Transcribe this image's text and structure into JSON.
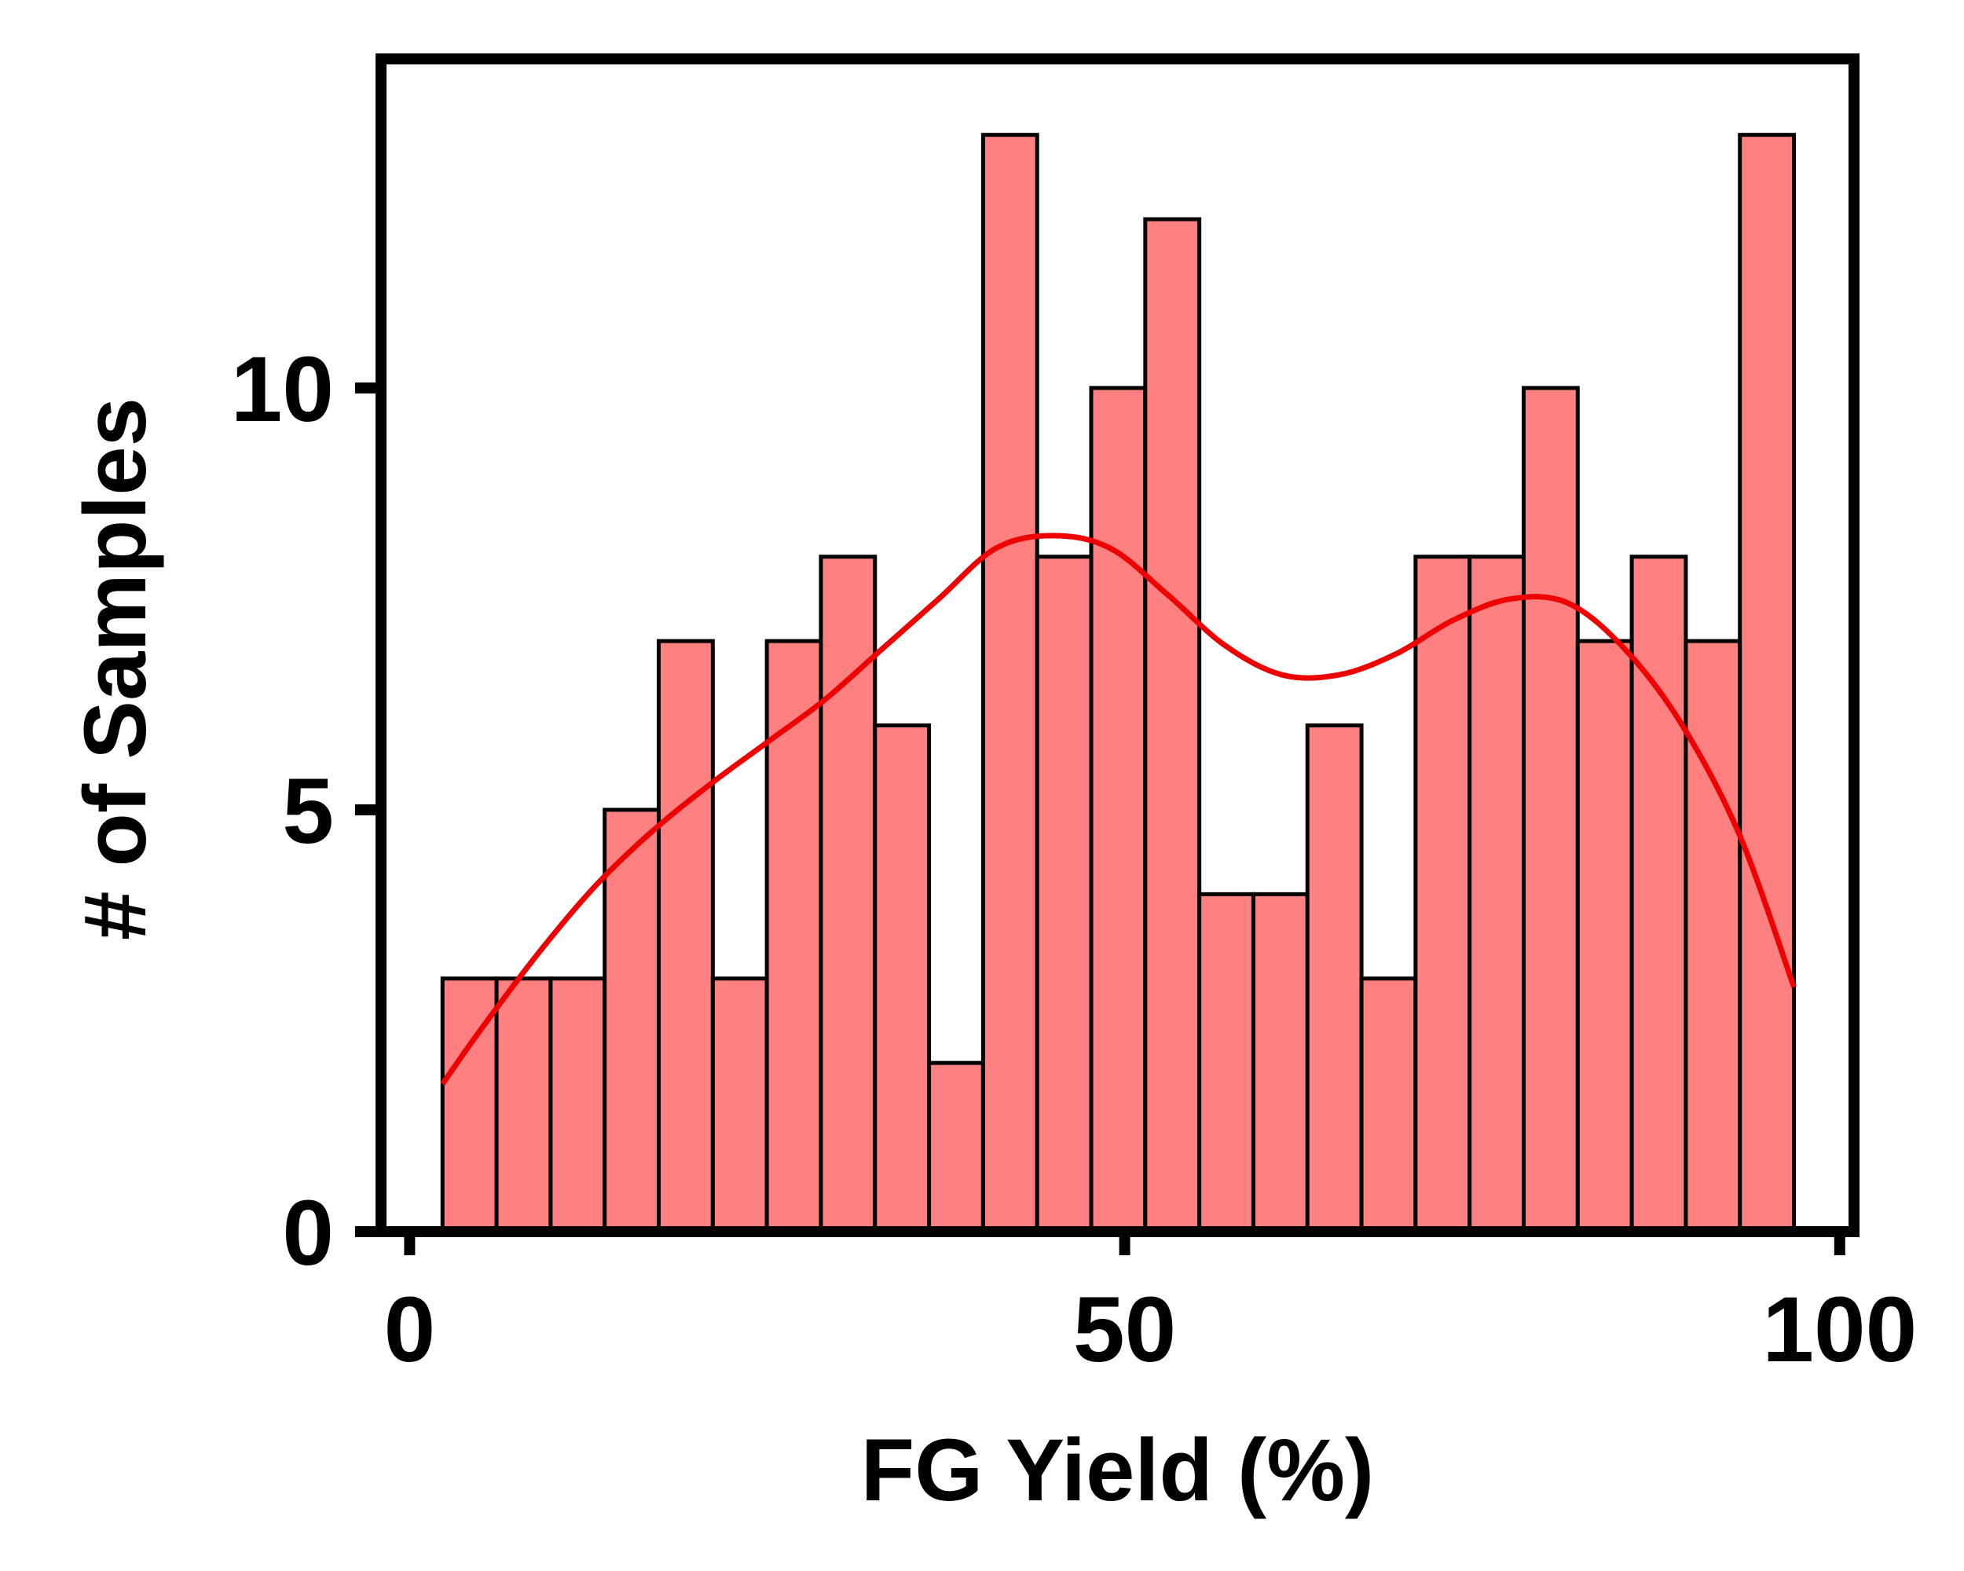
{
  "chart_data": {
    "type": "bar",
    "title": "",
    "xlabel": "FG Yield (%)",
    "ylabel": "# of Samples",
    "xlim": [
      -2,
      101
    ],
    "ylim": [
      0,
      13.9
    ],
    "xticks": [
      "0",
      "50",
      "100"
    ],
    "xtick_values": [
      0,
      50,
      100
    ],
    "yticks": [
      "0",
      "5",
      "10"
    ],
    "ytick_values": [
      0,
      5,
      10
    ],
    "bin_edges": [
      2.3,
      6.08,
      9.86,
      13.64,
      17.42,
      21.2,
      24.98,
      28.76,
      32.54,
      36.32,
      40.1,
      43.88,
      47.66,
      51.44,
      55.22,
      59.0,
      62.78,
      66.56,
      70.34,
      74.12,
      77.9,
      81.68,
      85.46,
      89.24,
      93.02,
      96.8
    ],
    "counts": [
      3,
      3,
      3,
      5,
      7,
      3,
      7,
      8,
      6,
      2,
      13,
      8,
      10,
      12,
      4,
      4,
      6,
      3,
      8,
      8,
      10,
      7,
      8,
      7,
      13
    ],
    "kde": {
      "x": [
        2.3,
        5,
        9,
        13,
        17,
        21,
        25,
        29,
        33,
        37,
        41,
        45,
        49,
        53,
        57,
        61,
        65,
        69,
        73,
        77,
        81,
        85,
        89,
        93,
        96.8
      ],
      "y": [
        1.75,
        2.4,
        3.3,
        4.1,
        4.75,
        5.3,
        5.8,
        6.3,
        6.9,
        7.5,
        8.1,
        8.25,
        8.1,
        7.55,
        6.95,
        6.6,
        6.6,
        6.85,
        7.25,
        7.5,
        7.45,
        6.9,
        6.0,
        4.7,
        2.9
      ]
    },
    "grid": false,
    "colors": {
      "bar_fill": "#ff8080",
      "bar_edge": "#000000",
      "kde_line": "#ee0000",
      "axes": "#000000"
    }
  }
}
